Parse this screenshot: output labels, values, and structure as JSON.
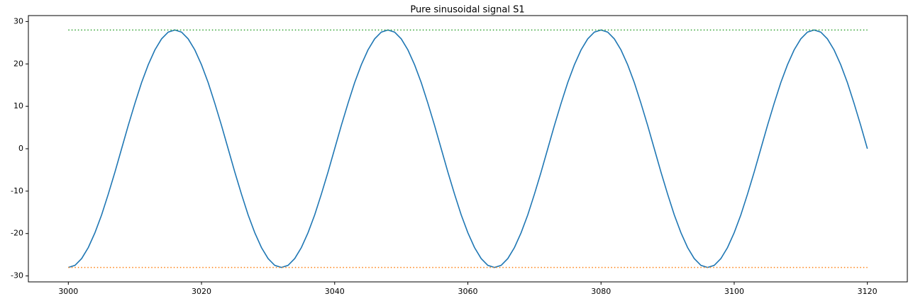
{
  "chart_data": {
    "type": "line",
    "title": "Pure sinusoidal signal S1",
    "series": [
      {
        "color": "#1f77b4",
        "style": "solid",
        "x": [
          3000,
          3001,
          3002,
          3003,
          3004,
          3005,
          3006,
          3007,
          3008,
          3009,
          3010,
          3011,
          3012,
          3013,
          3014,
          3015,
          3016,
          3017,
          3018,
          3019,
          3020,
          3021,
          3022,
          3023,
          3024,
          3025,
          3026,
          3027,
          3028,
          3029,
          3030,
          3031,
          3032,
          3033,
          3034,
          3035,
          3036,
          3037,
          3038,
          3039,
          3040,
          3041,
          3042,
          3043,
          3044,
          3045,
          3046,
          3047,
          3048,
          3049,
          3050,
          3051,
          3052,
          3053,
          3054,
          3055,
          3056,
          3057,
          3058,
          3059,
          3060,
          3061,
          3062,
          3063,
          3064,
          3065,
          3066,
          3067,
          3068,
          3069,
          3070,
          3071,
          3072,
          3073,
          3074,
          3075,
          3076,
          3077,
          3078,
          3079,
          3080,
          3081,
          3082,
          3083,
          3084,
          3085,
          3086,
          3087,
          3088,
          3089,
          3090,
          3091,
          3092,
          3093,
          3094,
          3095,
          3096,
          3097,
          3098,
          3099,
          3100,
          3101,
          3102,
          3103,
          3104,
          3105,
          3106,
          3107,
          3108,
          3109,
          3110,
          3111,
          3112,
          3113,
          3114,
          3115,
          3116,
          3117,
          3118,
          3119,
          3120
        ],
        "values": [
          -28,
          -27.5,
          -25.9,
          -23.3,
          -19.8,
          -15.6,
          -10.7,
          -5.5,
          0,
          5.5,
          10.7,
          15.6,
          19.8,
          23.3,
          25.9,
          27.5,
          28,
          27.5,
          25.9,
          23.3,
          19.8,
          15.6,
          10.7,
          5.5,
          0,
          -5.5,
          -10.7,
          -15.6,
          -19.8,
          -23.3,
          -25.9,
          -27.5,
          -28,
          -27.5,
          -25.9,
          -23.3,
          -19.8,
          -15.6,
          -10.7,
          -5.5,
          0,
          5.5,
          10.7,
          15.6,
          19.8,
          23.3,
          25.9,
          27.5,
          28,
          27.5,
          25.9,
          23.3,
          19.8,
          15.6,
          10.7,
          5.5,
          0,
          -5.5,
          -10.7,
          -15.6,
          -19.8,
          -23.3,
          -25.9,
          -27.5,
          -28,
          -27.5,
          -25.9,
          -23.3,
          -19.8,
          -15.6,
          -10.7,
          -5.5,
          0,
          5.5,
          10.7,
          15.6,
          19.8,
          23.3,
          25.9,
          27.5,
          28,
          27.5,
          25.9,
          23.3,
          19.8,
          15.6,
          10.7,
          5.5,
          0,
          -5.5,
          -10.7,
          -15.6,
          -19.8,
          -23.3,
          -25.9,
          -27.5,
          -28,
          -27.5,
          -25.9,
          -23.3,
          -19.8,
          -15.6,
          -10.7,
          -5.5,
          0,
          5.5,
          10.7,
          15.6,
          19.8,
          23.3,
          25.9,
          27.5,
          28,
          27.5,
          25.9,
          23.3,
          19.8,
          15.6,
          10.7,
          5.5,
          0
        ]
      },
      {
        "color": "#ff7f0e",
        "style": "dotted",
        "x": [
          3000,
          3120
        ],
        "values": [
          -28,
          -28
        ]
      },
      {
        "color": "#2ca02c",
        "style": "dotted",
        "x": [
          3000,
          3120
        ],
        "values": [
          28,
          28
        ]
      }
    ],
    "xlim": [
      2994,
      3126
    ],
    "xticks": [
      3000,
      3020,
      3040,
      3060,
      3080,
      3100,
      3120
    ],
    "ylim": [
      -31.4,
      31.4
    ],
    "yticks": [
      -30,
      -20,
      -10,
      0,
      10,
      20,
      30
    ],
    "grid": false
  }
}
